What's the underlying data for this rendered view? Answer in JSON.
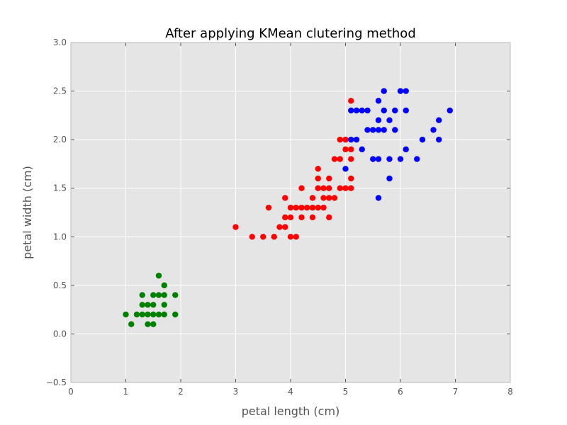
{
  "chart_data": {
    "type": "scatter",
    "title": "After applying KMean clutering method",
    "xlabel": "petal length (cm)",
    "ylabel": "petal width (cm)",
    "xlim": [
      0,
      8
    ],
    "ylim": [
      -0.5,
      3.0
    ],
    "xticks": [
      "0",
      "1",
      "2",
      "3",
      "4",
      "5",
      "6",
      "7",
      "8"
    ],
    "yticks": [
      "−0.5",
      "0.0",
      "0.5",
      "1.0",
      "1.5",
      "2.0",
      "2.5",
      "3.0"
    ],
    "grid": true,
    "background": "#e5e5e5",
    "series": [
      {
        "color": "#008000",
        "points": [
          [
            1.0,
            0.2
          ],
          [
            1.1,
            0.1
          ],
          [
            1.2,
            0.2
          ],
          [
            1.3,
            0.2
          ],
          [
            1.3,
            0.3
          ],
          [
            1.3,
            0.4
          ],
          [
            1.4,
            0.1
          ],
          [
            1.4,
            0.2
          ],
          [
            1.4,
            0.3
          ],
          [
            1.5,
            0.1
          ],
          [
            1.5,
            0.2
          ],
          [
            1.5,
            0.3
          ],
          [
            1.5,
            0.4
          ],
          [
            1.6,
            0.2
          ],
          [
            1.6,
            0.4
          ],
          [
            1.6,
            0.6
          ],
          [
            1.7,
            0.2
          ],
          [
            1.7,
            0.3
          ],
          [
            1.7,
            0.4
          ],
          [
            1.7,
            0.5
          ],
          [
            1.9,
            0.2
          ],
          [
            1.9,
            0.4
          ]
        ]
      },
      {
        "color": "#ff0000",
        "points": [
          [
            3.0,
            1.1
          ],
          [
            3.3,
            1.0
          ],
          [
            3.5,
            1.0
          ],
          [
            3.6,
            1.3
          ],
          [
            3.7,
            1.0
          ],
          [
            3.8,
            1.1
          ],
          [
            3.9,
            1.1
          ],
          [
            3.9,
            1.2
          ],
          [
            3.9,
            1.4
          ],
          [
            4.0,
            1.0
          ],
          [
            4.0,
            1.2
          ],
          [
            4.0,
            1.3
          ],
          [
            4.1,
            1.0
          ],
          [
            4.1,
            1.3
          ],
          [
            4.2,
            1.2
          ],
          [
            4.2,
            1.3
          ],
          [
            4.2,
            1.5
          ],
          [
            4.3,
            1.3
          ],
          [
            4.4,
            1.2
          ],
          [
            4.4,
            1.3
          ],
          [
            4.4,
            1.4
          ],
          [
            4.5,
            1.3
          ],
          [
            4.5,
            1.5
          ],
          [
            4.5,
            1.6
          ],
          [
            4.5,
            1.7
          ],
          [
            4.6,
            1.3
          ],
          [
            4.6,
            1.4
          ],
          [
            4.6,
            1.5
          ],
          [
            4.7,
            1.2
          ],
          [
            4.7,
            1.4
          ],
          [
            4.7,
            1.5
          ],
          [
            4.7,
            1.6
          ],
          [
            4.8,
            1.4
          ],
          [
            4.8,
            1.8
          ],
          [
            4.9,
            1.5
          ],
          [
            4.9,
            1.8
          ],
          [
            4.9,
            2.0
          ],
          [
            5.0,
            1.5
          ],
          [
            5.0,
            1.9
          ],
          [
            5.0,
            2.0
          ],
          [
            5.1,
            1.5
          ],
          [
            5.1,
            1.6
          ],
          [
            5.1,
            1.8
          ],
          [
            5.1,
            1.9
          ],
          [
            5.1,
            2.4
          ]
        ]
      },
      {
        "color": "#0000ff",
        "points": [
          [
            5.0,
            1.7
          ],
          [
            5.1,
            2.0
          ],
          [
            5.1,
            2.3
          ],
          [
            5.2,
            2.0
          ],
          [
            5.2,
            2.3
          ],
          [
            5.3,
            1.9
          ],
          [
            5.3,
            2.3
          ],
          [
            5.4,
            2.1
          ],
          [
            5.4,
            2.3
          ],
          [
            5.5,
            1.8
          ],
          [
            5.5,
            2.1
          ],
          [
            5.6,
            1.4
          ],
          [
            5.6,
            1.8
          ],
          [
            5.6,
            2.1
          ],
          [
            5.6,
            2.2
          ],
          [
            5.6,
            2.4
          ],
          [
            5.7,
            2.1
          ],
          [
            5.7,
            2.3
          ],
          [
            5.7,
            2.5
          ],
          [
            5.8,
            1.6
          ],
          [
            5.8,
            1.8
          ],
          [
            5.8,
            2.2
          ],
          [
            5.9,
            2.1
          ],
          [
            5.9,
            2.3
          ],
          [
            6.0,
            1.8
          ],
          [
            6.0,
            2.5
          ],
          [
            6.1,
            1.9
          ],
          [
            6.1,
            2.3
          ],
          [
            6.1,
            2.5
          ],
          [
            6.3,
            1.8
          ],
          [
            6.4,
            2.0
          ],
          [
            6.6,
            2.1
          ],
          [
            6.7,
            2.0
          ],
          [
            6.7,
            2.2
          ],
          [
            6.9,
            2.3
          ]
        ]
      }
    ]
  }
}
